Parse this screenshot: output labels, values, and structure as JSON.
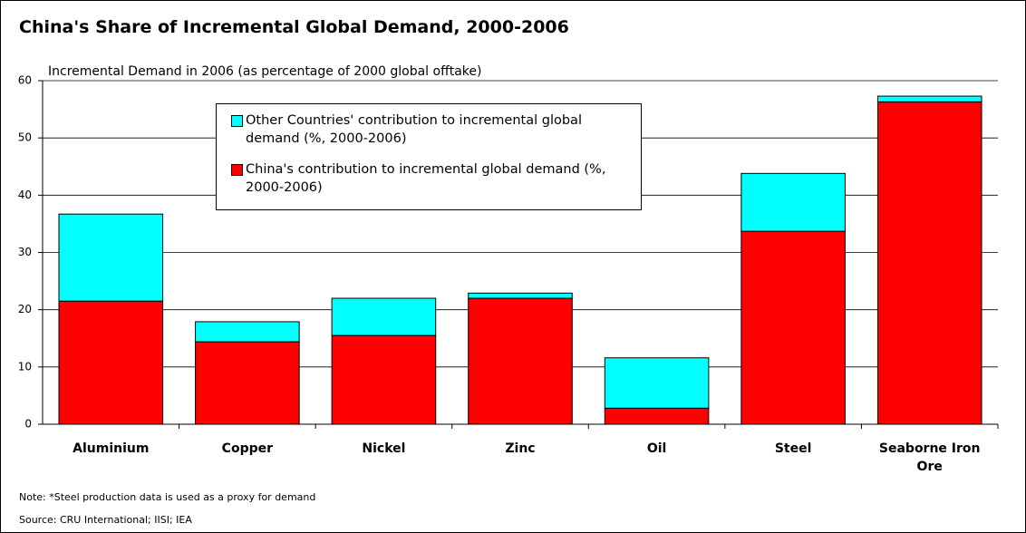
{
  "chart_data": {
    "type": "stacked_bar",
    "title": "China's Share of Incremental Global Demand, 2000-2006",
    "y_axis_label": "Incremental Demand in 2006 (as percentage of 2000 global offtake)",
    "categories": [
      "Aluminium",
      "Copper",
      "Nickel",
      "Zinc",
      "Oil",
      "Steel",
      "Seaborne Iron Ore"
    ],
    "series": [
      {
        "name": "China's contribution to incremental global demand (%, 2000-2006)",
        "color": "#ff0000",
        "values": [
          21.5,
          14.4,
          15.5,
          22.0,
          2.8,
          33.7,
          56.3
        ]
      },
      {
        "name": "Other Countries' contribution to incremental global demand (%, 2000-2006)",
        "color": "#00ffff",
        "values": [
          15.2,
          3.5,
          6.5,
          0.9,
          8.8,
          10.1,
          1.0
        ]
      }
    ],
    "ylim": [
      0,
      60
    ],
    "yticks": [
      0,
      10,
      20,
      30,
      40,
      50,
      60
    ],
    "grid": true,
    "notes": [
      "Note: *Steel production data is used as a proxy for demand",
      "Source:  CRU International; IISI; IEA"
    ]
  }
}
